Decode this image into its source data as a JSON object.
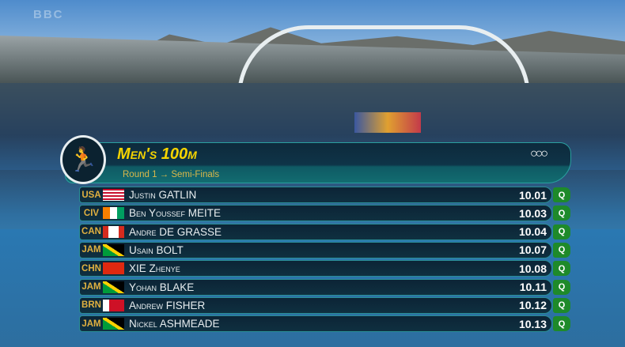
{
  "watermark": "BBC",
  "event": {
    "title": "Men's 100m",
    "subtitle": "Round 1 → Semi-Finals",
    "sport_icon": "athletics-pictogram",
    "olympic_rings": "olympic-rings-icon"
  },
  "colors": {
    "title": "#f5d400",
    "noc": "#e0b040",
    "qualified": "#1e8a2a"
  },
  "results": [
    {
      "noc": "USA",
      "flag": "usa",
      "first": "Justin",
      "last": "GATLIN",
      "time": "10.01",
      "status": "Q"
    },
    {
      "noc": "CIV",
      "flag": "civ",
      "first": "Ben Youssef",
      "last": "MEITE",
      "time": "10.03",
      "status": "Q"
    },
    {
      "noc": "CAN",
      "flag": "can",
      "first": "Andre",
      "last": "DE GRASSE",
      "time": "10.04",
      "status": "Q"
    },
    {
      "noc": "JAM",
      "flag": "jam",
      "first": "Usain",
      "last": "BOLT",
      "time": "10.07",
      "status": "Q"
    },
    {
      "noc": "CHN",
      "flag": "chn",
      "first": "",
      "last": "XIE",
      "last_after": "Zhenye",
      "time": "10.08",
      "status": "Q"
    },
    {
      "noc": "JAM",
      "flag": "jam",
      "first": "Yohan",
      "last": "BLAKE",
      "time": "10.11",
      "status": "Q"
    },
    {
      "noc": "BRN",
      "flag": "brn",
      "first": "Andrew",
      "last": "FISHER",
      "time": "10.12",
      "status": "Q"
    },
    {
      "noc": "JAM",
      "flag": "jam",
      "first": "Nickel",
      "last": "ASHMEADE",
      "time": "10.13",
      "status": "Q"
    }
  ]
}
